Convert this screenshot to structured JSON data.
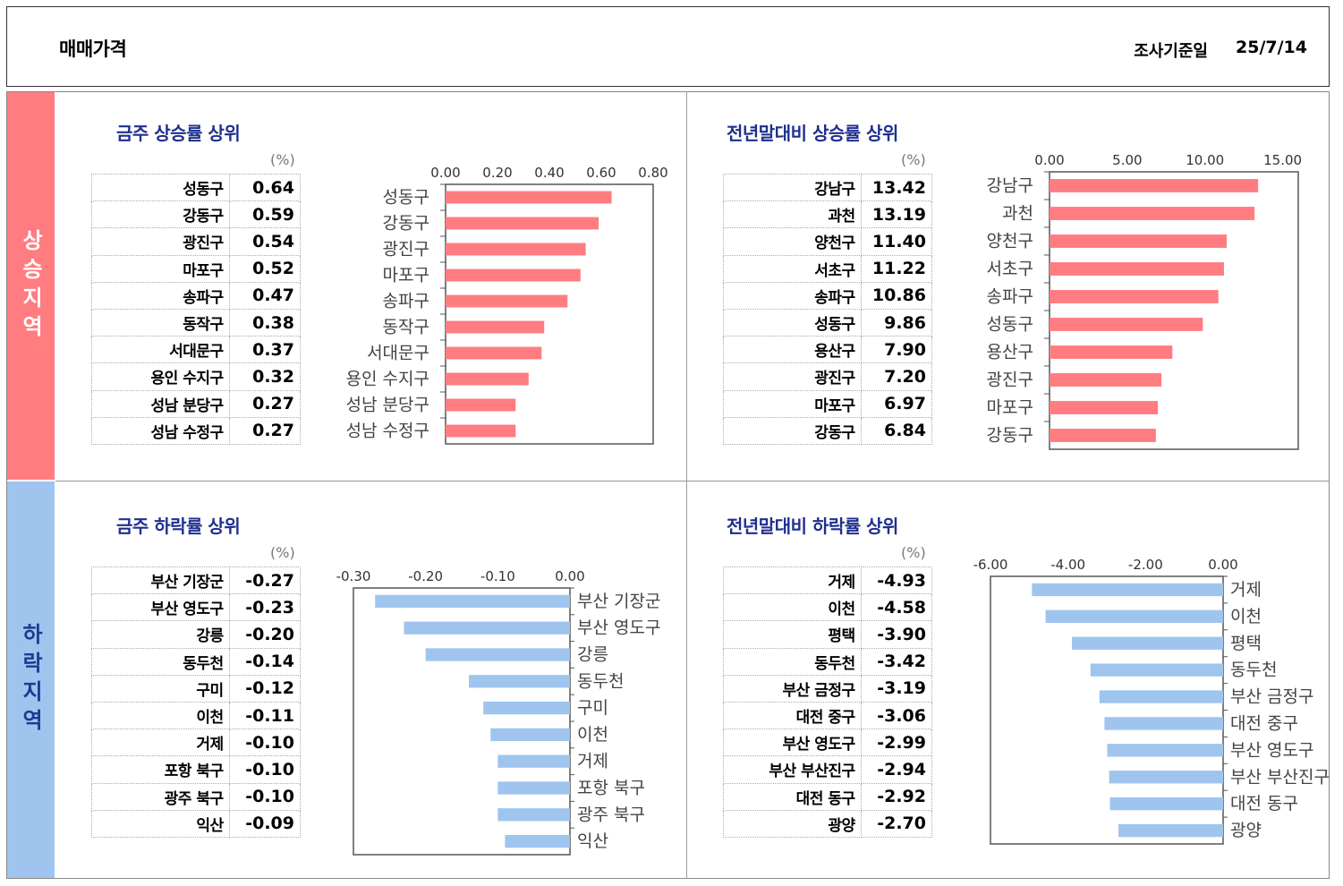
{
  "header": {
    "title": "매매가격",
    "date_label": "조사기준일",
    "date_value": "25/7/14"
  },
  "side_labels": {
    "rise": "상승지역",
    "fall": "하락지역"
  },
  "unit_label": "(%)",
  "colors": {
    "rise": "#ff7c80",
    "fall": "#9fc5ee",
    "title": "#1f2f8f"
  },
  "panels": [
    {
      "title": "금주 상승률 상위",
      "rows": [
        {
          "name": "성동구",
          "value": "0.64"
        },
        {
          "name": "강동구",
          "value": "0.59"
        },
        {
          "name": "광진구",
          "value": "0.54"
        },
        {
          "name": "마포구",
          "value": "0.52"
        },
        {
          "name": "송파구",
          "value": "0.47"
        },
        {
          "name": "동작구",
          "value": "0.38"
        },
        {
          "name": "서대문구",
          "value": "0.37"
        },
        {
          "name": "용인 수지구",
          "value": "0.32"
        },
        {
          "name": "성남 분당구",
          "value": "0.27"
        },
        {
          "name": "성남 수정구",
          "value": "0.27"
        }
      ]
    },
    {
      "title": "전년말대비 상승률 상위",
      "rows": [
        {
          "name": "강남구",
          "value": "13.42"
        },
        {
          "name": "과천",
          "value": "13.19"
        },
        {
          "name": "양천구",
          "value": "11.40"
        },
        {
          "name": "서초구",
          "value": "11.22"
        },
        {
          "name": "송파구",
          "value": "10.86"
        },
        {
          "name": "성동구",
          "value": "9.86"
        },
        {
          "name": "용산구",
          "value": "7.90"
        },
        {
          "name": "광진구",
          "value": "7.20"
        },
        {
          "name": "마포구",
          "value": "6.97"
        },
        {
          "name": "강동구",
          "value": "6.84"
        }
      ]
    },
    {
      "title": "금주 하락률 상위",
      "rows": [
        {
          "name": "부산 기장군",
          "value": "-0.27"
        },
        {
          "name": "부산 영도구",
          "value": "-0.23"
        },
        {
          "name": "강릉",
          "value": "-0.20"
        },
        {
          "name": "동두천",
          "value": "-0.14"
        },
        {
          "name": "구미",
          "value": "-0.12"
        },
        {
          "name": "이천",
          "value": "-0.11"
        },
        {
          "name": "거제",
          "value": "-0.10"
        },
        {
          "name": "포항 북구",
          "value": "-0.10"
        },
        {
          "name": "광주 북구",
          "value": "-0.10"
        },
        {
          "name": "익산",
          "value": "-0.09"
        }
      ]
    },
    {
      "title": "전년말대비 하락률 상위",
      "rows": [
        {
          "name": "거제",
          "value": "-4.93"
        },
        {
          "name": "이천",
          "value": "-4.58"
        },
        {
          "name": "평택",
          "value": "-3.90"
        },
        {
          "name": "동두천",
          "value": "-3.42"
        },
        {
          "name": "부산 금정구",
          "value": "-3.19"
        },
        {
          "name": "대전 중구",
          "value": "-3.06"
        },
        {
          "name": "부산 영도구",
          "value": "-2.99"
        },
        {
          "name": "부산 부산진구",
          "value": "-2.94"
        },
        {
          "name": "대전 동구",
          "value": "-2.92"
        },
        {
          "name": "광양",
          "value": "-2.70"
        }
      ]
    }
  ],
  "chart_data": [
    {
      "type": "bar",
      "orientation": "horizontal",
      "color": "#ff7c80",
      "categories": [
        "성동구",
        "강동구",
        "광진구",
        "마포구",
        "송파구",
        "동작구",
        "서대문구",
        "용인 수지구",
        "성남 분당구",
        "성남 수정구"
      ],
      "values": [
        0.64,
        0.59,
        0.54,
        0.52,
        0.47,
        0.38,
        0.37,
        0.32,
        0.27,
        0.27
      ],
      "xlim": [
        0,
        0.8
      ],
      "ticks": [
        "0.00",
        "0.20",
        "0.40",
        "0.60",
        "0.80"
      ],
      "tick_values": [
        0,
        0.2,
        0.4,
        0.6,
        0.8
      ]
    },
    {
      "type": "bar",
      "orientation": "horizontal",
      "color": "#ff7c80",
      "categories": [
        "강남구",
        "과천",
        "양천구",
        "서초구",
        "송파구",
        "성동구",
        "용산구",
        "광진구",
        "마포구",
        "강동구"
      ],
      "values": [
        13.42,
        13.19,
        11.4,
        11.22,
        10.86,
        9.86,
        7.9,
        7.2,
        6.97,
        6.84
      ],
      "xlim": [
        0,
        16
      ],
      "ticks": [
        "0.00",
        "5.00",
        "10.00",
        "15.00"
      ],
      "tick_values": [
        0,
        5,
        10,
        15
      ]
    },
    {
      "type": "bar",
      "orientation": "horizontal",
      "color": "#9fc5ee",
      "categories": [
        "부산 기장군",
        "부산 영도구",
        "강릉",
        "동두천",
        "구미",
        "이천",
        "거제",
        "포항 북구",
        "광주 북구",
        "익산"
      ],
      "values": [
        -0.27,
        -0.23,
        -0.2,
        -0.14,
        -0.12,
        -0.11,
        -0.1,
        -0.1,
        -0.1,
        -0.09
      ],
      "xlim": [
        -0.3,
        0
      ],
      "ticks": [
        "-0.30",
        "-0.20",
        "-0.10",
        "0.00"
      ],
      "tick_values": [
        -0.3,
        -0.2,
        -0.1,
        0
      ]
    },
    {
      "type": "bar",
      "orientation": "horizontal",
      "color": "#9fc5ee",
      "categories": [
        "거제",
        "이천",
        "평택",
        "동두천",
        "부산 금정구",
        "대전 중구",
        "부산 영도구",
        "부산 부산진구",
        "대전 동구",
        "광양"
      ],
      "values": [
        -4.93,
        -4.58,
        -3.9,
        -3.42,
        -3.19,
        -3.06,
        -2.99,
        -2.94,
        -2.92,
        -2.7
      ],
      "xlim": [
        -6,
        0
      ],
      "ticks": [
        "-6.00",
        "-4.00",
        "-2.00",
        "0.00"
      ],
      "tick_values": [
        -6,
        -4,
        -2,
        0
      ]
    }
  ]
}
